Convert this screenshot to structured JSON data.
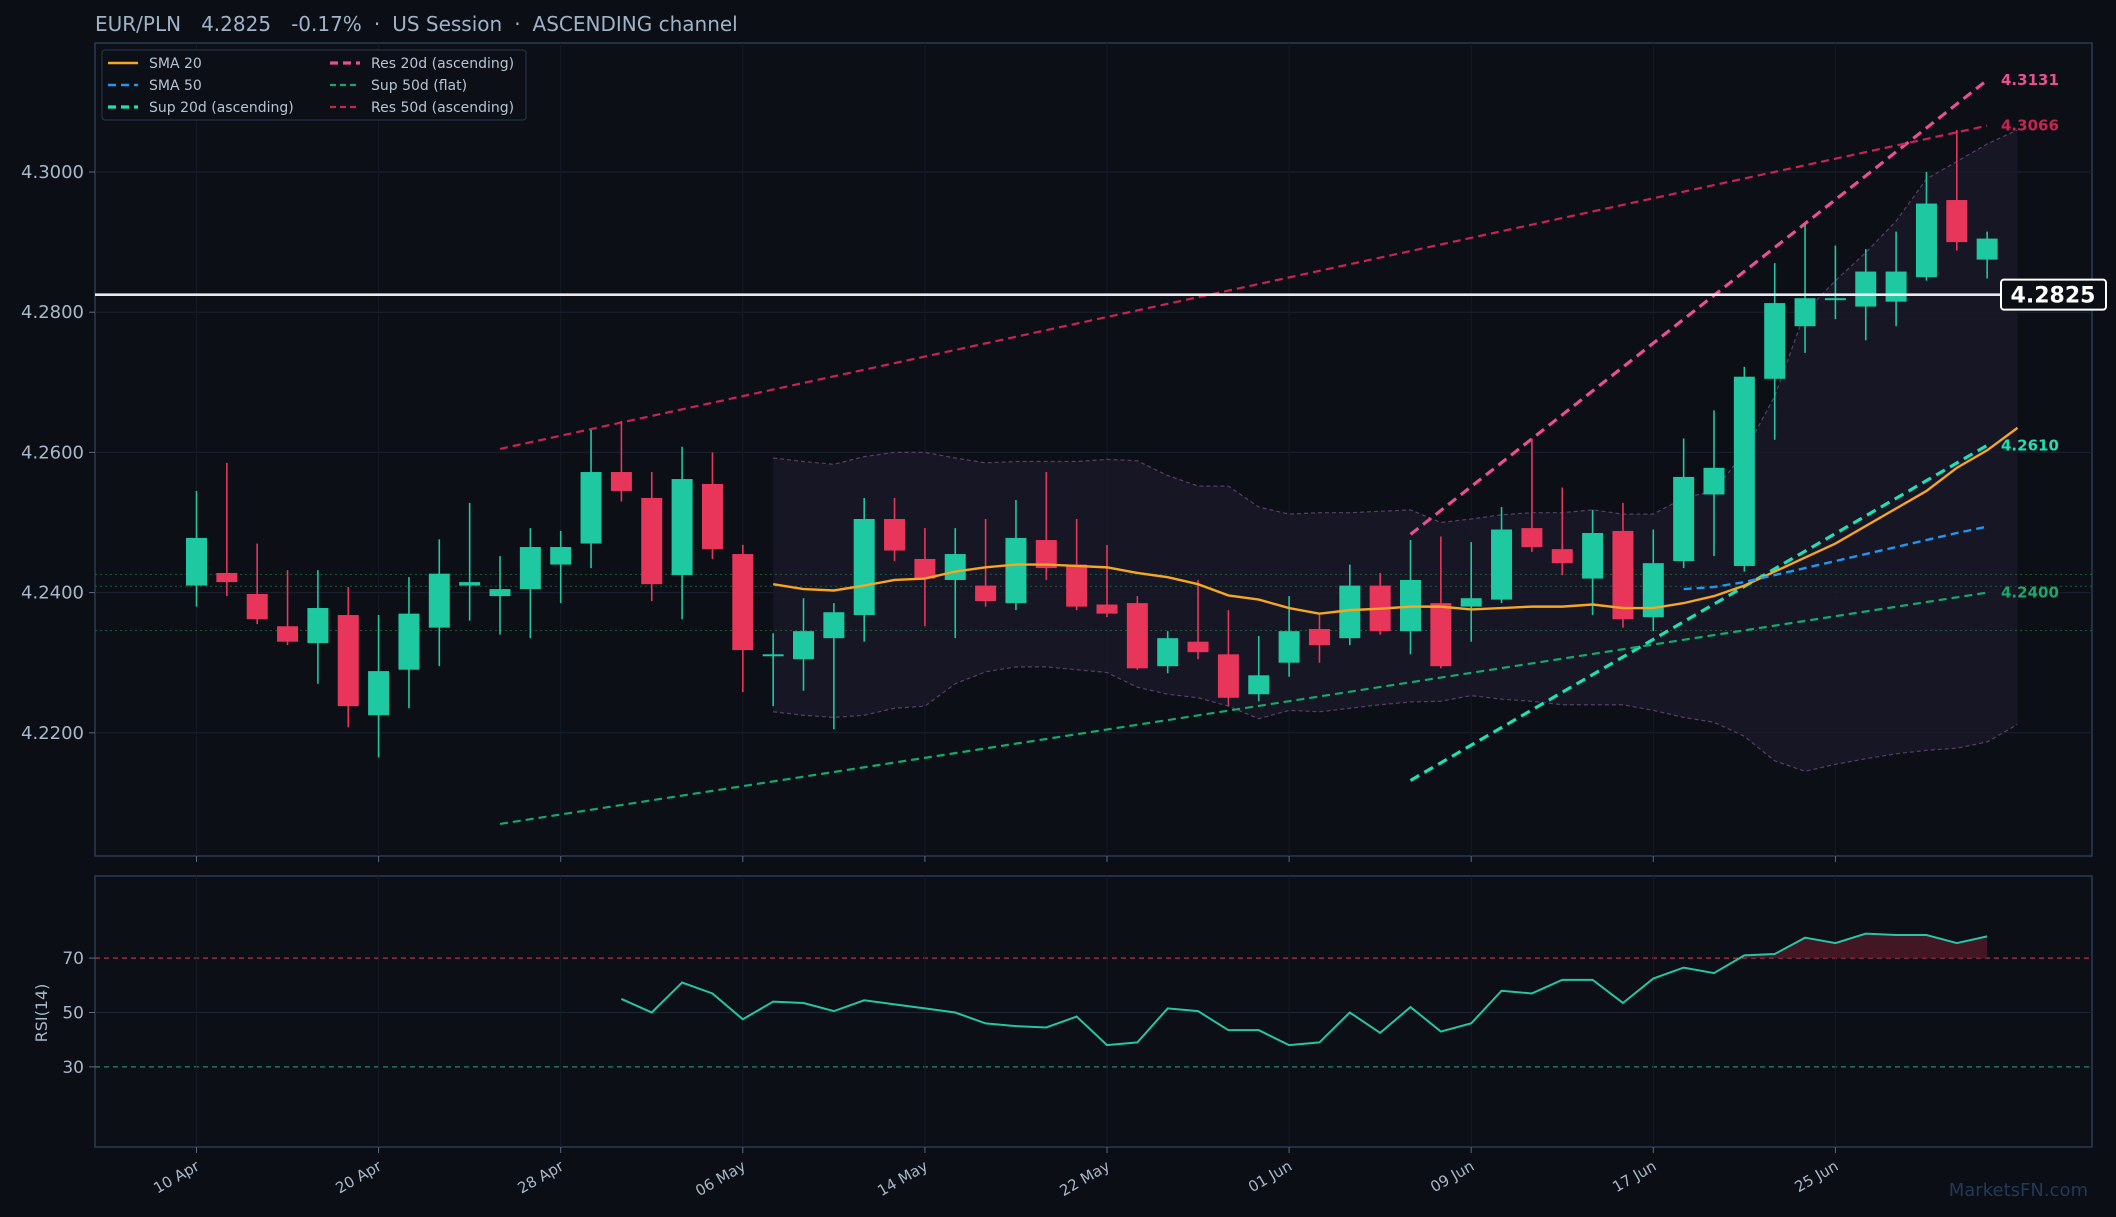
{
  "header": {
    "symbol": "EUR/PLN",
    "price": "4.2825",
    "change": "-0.17%",
    "session": "US Session",
    "pattern": "ASCENDING channel",
    "separator": "·"
  },
  "watermark": "MarketsFN.com",
  "colors": {
    "background": "#0b0e14",
    "panel_border": "#2a3a55",
    "up": "#1ec8a0",
    "down": "#e8365b",
    "sma20": "#f5a623",
    "sma50": "#2196f3",
    "sup20": "#1ee0b4",
    "res20": "#e8508f",
    "sup50": "#17a86a",
    "res50": "#c72452",
    "rsi": "#26c6a4",
    "header_text": "#9fb3c8",
    "axis_text": "#a9b8c8"
  },
  "chart_data": [
    {
      "type": "candlestick",
      "title": "EUR/PLN 4.2825 -0.17% · US Session · ASCENDING channel",
      "ylim": [
        4.2015,
        4.3175
      ],
      "yticks": [
        "4.2200",
        "4.2400",
        "4.2600",
        "4.2800",
        "4.3000"
      ],
      "x_dates": [
        "10 Apr",
        "20 Apr",
        "28 Apr",
        "06 May",
        "14 May",
        "22 May",
        "01 Jun",
        "09 Jun",
        "17 Jun",
        "25 Jun"
      ],
      "x_date_index": [
        0,
        6,
        12,
        18,
        24,
        30,
        36,
        42,
        48,
        54
      ],
      "candles": [
        {
          "o": 4.241,
          "h": 4.2545,
          "l": 4.238,
          "c": 4.2478
        },
        {
          "o": 4.2428,
          "h": 4.2585,
          "l": 4.2395,
          "c": 4.2415
        },
        {
          "o": 4.2398,
          "h": 4.247,
          "l": 4.2355,
          "c": 4.2362
        },
        {
          "o": 4.2352,
          "h": 4.2432,
          "l": 4.2325,
          "c": 4.233
        },
        {
          "o": 4.2328,
          "h": 4.2432,
          "l": 4.227,
          "c": 4.2378
        },
        {
          "o": 4.2368,
          "h": 4.2408,
          "l": 4.2208,
          "c": 4.2238
        },
        {
          "o": 4.2225,
          "h": 4.2368,
          "l": 4.2165,
          "c": 4.2288
        },
        {
          "o": 4.229,
          "h": 4.2422,
          "l": 4.2235,
          "c": 4.237
        },
        {
          "o": 4.235,
          "h": 4.2476,
          "l": 4.2295,
          "c": 4.2427
        },
        {
          "o": 4.241,
          "h": 4.2528,
          "l": 4.236,
          "c": 4.2415
        },
        {
          "o": 4.2395,
          "h": 4.2452,
          "l": 4.234,
          "c": 4.2405
        },
        {
          "o": 4.2405,
          "h": 4.2492,
          "l": 4.2335,
          "c": 4.2465
        },
        {
          "o": 4.244,
          "h": 4.2488,
          "l": 4.2385,
          "c": 4.2465
        },
        {
          "o": 4.247,
          "h": 4.2632,
          "l": 4.2435,
          "c": 4.2572
        },
        {
          "o": 4.2572,
          "h": 4.2645,
          "l": 4.253,
          "c": 4.2545
        },
        {
          "o": 4.2535,
          "h": 4.2572,
          "l": 4.2388,
          "c": 4.2412
        },
        {
          "o": 4.2425,
          "h": 4.2608,
          "l": 4.2362,
          "c": 4.2562
        },
        {
          "o": 4.2555,
          "h": 4.26,
          "l": 4.2448,
          "c": 4.2462
        },
        {
          "o": 4.2455,
          "h": 4.2468,
          "l": 4.2258,
          "c": 4.2318
        },
        {
          "o": 4.231,
          "h": 4.2342,
          "l": 4.2238,
          "c": 4.2312
        },
        {
          "o": 4.2305,
          "h": 4.2392,
          "l": 4.226,
          "c": 4.2345
        },
        {
          "o": 4.2335,
          "h": 4.2385,
          "l": 4.2205,
          "c": 4.2372
        },
        {
          "o": 4.2368,
          "h": 4.2535,
          "l": 4.233,
          "c": 4.2505
        },
        {
          "o": 4.2505,
          "h": 4.2535,
          "l": 4.2445,
          "c": 4.246
        },
        {
          "o": 4.2448,
          "h": 4.2492,
          "l": 4.2352,
          "c": 4.242
        },
        {
          "o": 4.2418,
          "h": 4.2492,
          "l": 4.2335,
          "c": 4.2455
        },
        {
          "o": 4.241,
          "h": 4.2505,
          "l": 4.238,
          "c": 4.2388
        },
        {
          "o": 4.2385,
          "h": 4.2532,
          "l": 4.2375,
          "c": 4.2478
        },
        {
          "o": 4.2475,
          "h": 4.2572,
          "l": 4.2418,
          "c": 4.2435
        },
        {
          "o": 4.244,
          "h": 4.2505,
          "l": 4.2375,
          "c": 4.238
        },
        {
          "o": 4.2383,
          "h": 4.2468,
          "l": 4.2365,
          "c": 4.237
        },
        {
          "o": 4.2385,
          "h": 4.2395,
          "l": 4.229,
          "c": 4.2292
        },
        {
          "o": 4.2295,
          "h": 4.2345,
          "l": 4.2285,
          "c": 4.2335
        },
        {
          "o": 4.233,
          "h": 4.2418,
          "l": 4.2305,
          "c": 4.2315
        },
        {
          "o": 4.2312,
          "h": 4.2375,
          "l": 4.2238,
          "c": 4.225
        },
        {
          "o": 4.2255,
          "h": 4.2338,
          "l": 4.2245,
          "c": 4.2282
        },
        {
          "o": 4.23,
          "h": 4.2395,
          "l": 4.228,
          "c": 4.2345
        },
        {
          "o": 4.2348,
          "h": 4.2368,
          "l": 4.23,
          "c": 4.2325
        },
        {
          "o": 4.2335,
          "h": 4.244,
          "l": 4.2325,
          "c": 4.241
        },
        {
          "o": 4.241,
          "h": 4.2428,
          "l": 4.234,
          "c": 4.2345
        },
        {
          "o": 4.2345,
          "h": 4.2475,
          "l": 4.2312,
          "c": 4.2418
        },
        {
          "o": 4.2385,
          "h": 4.248,
          "l": 4.2292,
          "c": 4.2295
        },
        {
          "o": 4.238,
          "h": 4.2472,
          "l": 4.233,
          "c": 4.2392
        },
        {
          "o": 4.239,
          "h": 4.2522,
          "l": 4.2385,
          "c": 4.249
        },
        {
          "o": 4.2492,
          "h": 4.262,
          "l": 4.2458,
          "c": 4.2465
        },
        {
          "o": 4.2462,
          "h": 4.255,
          "l": 4.2425,
          "c": 4.2442
        },
        {
          "o": 4.242,
          "h": 4.2518,
          "l": 4.2368,
          "c": 4.2485
        },
        {
          "o": 4.2488,
          "h": 4.2528,
          "l": 4.235,
          "c": 4.2362
        },
        {
          "o": 4.2365,
          "h": 4.249,
          "l": 4.2345,
          "c": 4.2442
        },
        {
          "o": 4.2445,
          "h": 4.262,
          "l": 4.2435,
          "c": 4.2565
        },
        {
          "o": 4.254,
          "h": 4.266,
          "l": 4.2452,
          "c": 4.2578
        },
        {
          "o": 4.2438,
          "h": 4.2722,
          "l": 4.243,
          "c": 4.2708
        },
        {
          "o": 4.2705,
          "h": 4.287,
          "l": 4.2618,
          "c": 4.2813
        },
        {
          "o": 4.278,
          "h": 4.2925,
          "l": 4.2742,
          "c": 4.282
        },
        {
          "o": 4.2818,
          "h": 4.2895,
          "l": 4.279,
          "c": 4.282
        },
        {
          "o": 4.2808,
          "h": 4.289,
          "l": 4.276,
          "c": 4.2858
        },
        {
          "o": 4.2815,
          "h": 4.2915,
          "l": 4.278,
          "c": 4.2858
        },
        {
          "o": 4.285,
          "h": 4.3,
          "l": 4.2845,
          "c": 4.2955
        },
        {
          "o": 4.296,
          "h": 4.306,
          "l": 4.2888,
          "c": 4.29
        },
        {
          "o": 4.2875,
          "h": 4.2915,
          "l": 4.2848,
          "c": 4.2905
        }
      ],
      "current_price": {
        "value": 4.2825,
        "label": "4.2825"
      },
      "sma20": {
        "name": "SMA 20",
        "start": 19,
        "values": [
          4.2412,
          4.2405,
          4.2403,
          4.241,
          4.2418,
          4.242,
          4.243,
          4.2436,
          4.244,
          4.244,
          4.2438,
          4.2436,
          4.2428,
          4.2422,
          4.2412,
          4.2396,
          4.239,
          4.2378,
          4.237,
          4.2375,
          4.2377,
          4.238,
          4.238,
          4.2376,
          4.2378,
          4.238,
          4.238,
          4.2383,
          4.2378,
          4.2378,
          4.2385,
          4.2395,
          4.241,
          4.243,
          4.245,
          4.247,
          4.2495,
          4.252,
          4.2545,
          4.2578,
          4.2603,
          4.2635
        ]
      },
      "sma50": {
        "name": "SMA 50",
        "start": 49,
        "values": [
          4.2405,
          4.2408,
          4.2415,
          4.2425,
          4.2435,
          4.2445,
          4.2455,
          4.2465,
          4.2475,
          4.2485,
          4.2494
        ]
      },
      "bollinger": {
        "start": 19,
        "upper": [
          4.2592,
          4.2587,
          4.2583,
          4.2594,
          4.26,
          4.26,
          4.2592,
          4.2585,
          4.2587,
          4.2587,
          4.2587,
          4.259,
          4.2588,
          4.2567,
          4.2552,
          4.2552,
          4.2522,
          4.2512,
          4.2514,
          4.2514,
          4.2516,
          4.2518,
          4.25,
          4.2505,
          4.2511,
          4.2514,
          4.2514,
          4.2518,
          4.2512,
          4.2512,
          4.2535,
          4.2545,
          4.26,
          4.268,
          4.28,
          4.2845,
          4.2885,
          4.293,
          4.299,
          4.3015,
          4.304,
          4.306
        ],
        "lower": [
          4.223,
          4.2225,
          4.2222,
          4.2225,
          4.2235,
          4.2238,
          4.227,
          4.2287,
          4.2294,
          4.2294,
          4.229,
          4.2286,
          4.2265,
          4.2255,
          4.225,
          4.2238,
          4.222,
          4.2232,
          4.223,
          4.2235,
          4.224,
          4.2244,
          4.2245,
          4.2253,
          4.2248,
          4.2245,
          4.224,
          4.224,
          4.224,
          4.2232,
          4.2222,
          4.2215,
          4.2195,
          4.216,
          4.2145,
          4.2155,
          4.2163,
          4.217,
          4.2175,
          4.2178,
          4.2187,
          4.2212
        ]
      },
      "trendlines": [
        {
          "name": "Sup 20d (ascending)",
          "x1": 40,
          "y1": 4.2132,
          "x2": 59,
          "y2": 4.261,
          "label": "4.2610"
        },
        {
          "name": "Res 20d (ascending)",
          "x1": 40,
          "y1": 4.2483,
          "x2": 59,
          "y2": 4.3131,
          "label": "4.3131"
        },
        {
          "name": "Sup 50d (flat)",
          "x1": 10,
          "y1": 4.207,
          "x2": 59,
          "y2": 4.24,
          "label": "4.2400"
        },
        {
          "name": "Res 50d (ascending)",
          "x1": 10,
          "y1": 4.2605,
          "x2": 59,
          "y2": 4.3066,
          "label": "4.3066"
        }
      ],
      "reference_levels": [
        4.2426,
        4.2409,
        4.2346
      ],
      "legend": {
        "position": "top-left",
        "entries": [
          "SMA 20",
          "SMA 50",
          "Sup 20d (ascending)",
          "Res 20d (ascending)",
          "Sup 50d (flat)",
          "Res 50d (ascending)"
        ]
      }
    },
    {
      "type": "line",
      "ylabel": "RSI(14)",
      "ylim": [
        0,
        100
      ],
      "yticks": [
        "30",
        "50",
        "70"
      ],
      "overbought": 70,
      "oversold": 30,
      "start": 14,
      "values": [
        55.0,
        50.0,
        61.0,
        57.0,
        47.5,
        54.0,
        53.5,
        50.5,
        54.5,
        53.0,
        51.5,
        50.0,
        46.0,
        45.0,
        44.5,
        48.5,
        38.0,
        39.0,
        51.5,
        50.5,
        43.5,
        43.5,
        38.0,
        39.0,
        50.0,
        42.5,
        52.0,
        43.0,
        46.0,
        58.0,
        57.0,
        62.0,
        62.0,
        53.5,
        62.5,
        66.5,
        64.5,
        71.0,
        71.5,
        77.5,
        75.5,
        79.0,
        78.5,
        78.5,
        75.5,
        78.0
      ]
    }
  ]
}
